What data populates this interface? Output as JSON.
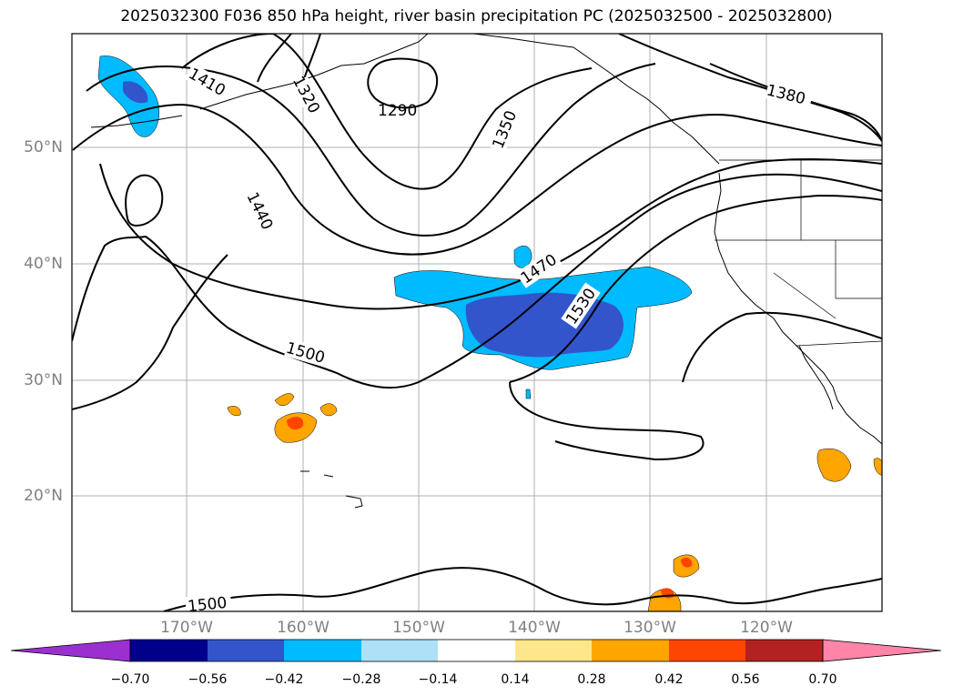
{
  "title": "2025032300 F036 850 hPa height, river basin precipitation PC (2025032500 - 2025032800)",
  "map": {
    "lat_labels": [
      "50°N",
      "40°N",
      "30°N",
      "20°N"
    ],
    "lon_labels": [
      "170°W",
      "160°W",
      "150°W",
      "140°W",
      "130°W",
      "120°W"
    ],
    "contour_labels": [
      "1410",
      "1320",
      "1290",
      "1350",
      "1380",
      "1440",
      "1470",
      "1530",
      "1500",
      "1500"
    ]
  },
  "colorbar": {
    "ticks": [
      "−0.70",
      "−0.56",
      "−0.42",
      "−0.28",
      "−0.14",
      "0.14",
      "0.28",
      "0.42",
      "0.56",
      "0.70"
    ],
    "colors": [
      "#9b30d0",
      "#00008b",
      "#3355cc",
      "#00bbff",
      "#aee0f8",
      "#ffffff",
      "#fde78a",
      "#ffa500",
      "#ff4500",
      "#b22222",
      "#ff85a8"
    ]
  },
  "fill_colors": {
    "neg_light": "#00bbff",
    "neg_mid": "#3355cc",
    "pos_light": "#ffa500",
    "pos_mid": "#ff4500"
  }
}
